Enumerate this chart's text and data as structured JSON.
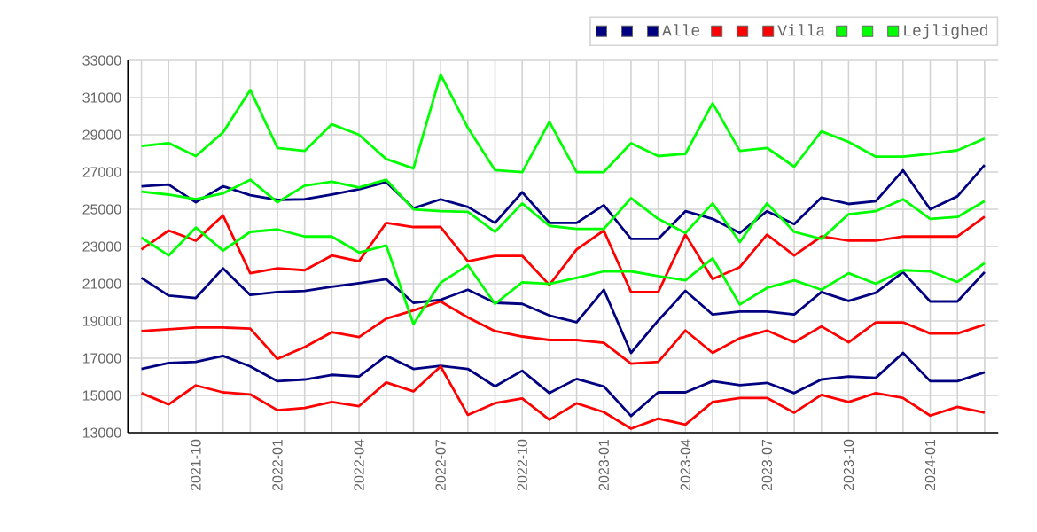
{
  "chart_data": {
    "type": "line",
    "x": [
      "2021-08",
      "2021-09",
      "2021-10",
      "2021-11",
      "2021-12",
      "2022-01",
      "2022-02",
      "2022-03",
      "2022-04",
      "2022-05",
      "2022-06",
      "2022-07",
      "2022-08",
      "2022-09",
      "2022-10",
      "2022-11",
      "2022-12",
      "2023-01",
      "2023-02",
      "2023-03",
      "2023-04",
      "2023-05",
      "2023-06",
      "2023-07",
      "2023-08",
      "2023-09",
      "2023-10",
      "2023-11",
      "2023-12",
      "2024-01",
      "2024-02",
      "2024-03"
    ],
    "series": [
      {
        "color": "#000080",
        "values": [
          16430,
          16750,
          16810,
          17130,
          16560,
          15770,
          15860,
          16110,
          16020,
          17130,
          16430,
          16590,
          16430,
          15490,
          16330,
          15130,
          15890,
          15490,
          13900,
          15170,
          15170,
          15770,
          15560,
          15680,
          15130,
          15860,
          16020,
          15950,
          17290,
          15770,
          15770,
          16250
        ]
      },
      {
        "color": "#000080",
        "values": [
          26240,
          26330,
          25380,
          26240,
          25760,
          25510,
          25540,
          25790,
          26080,
          26460,
          25060,
          25540,
          25130,
          24270,
          25920,
          24270,
          24270,
          25220,
          23410,
          23410,
          24900,
          24490,
          23730,
          24900,
          24210,
          25630,
          25290,
          25440,
          27100,
          25000,
          25700,
          27380
        ]
      },
      {
        "name": "Alle",
        "color": "#000080",
        "values": [
          21320,
          20370,
          20240,
          21830,
          20400,
          20560,
          20620,
          20840,
          21030,
          21250,
          19980,
          20140,
          20680,
          19980,
          19920,
          19300,
          18940,
          20680,
          17290,
          19030,
          20620,
          19350,
          19510,
          19510,
          19350,
          20560,
          20080,
          20520,
          21630,
          20050,
          20050,
          21630
        ]
      },
      {
        "color": "#ff0000",
        "values": [
          15130,
          14520,
          15540,
          15170,
          15060,
          14210,
          14330,
          14650,
          14430,
          15700,
          15220,
          16560,
          13960,
          14590,
          14840,
          13700,
          14580,
          14110,
          13220,
          13760,
          13440,
          14650,
          14870,
          14870,
          14080,
          15030,
          14650,
          15130,
          14870,
          13920,
          14390,
          14080
        ]
      },
      {
        "color": "#ff0000",
        "values": [
          22840,
          23860,
          23320,
          24670,
          21570,
          21830,
          21730,
          22520,
          22210,
          24270,
          24050,
          24050,
          22210,
          22500,
          22500,
          20940,
          22840,
          23860,
          20560,
          20560,
          23640,
          21250,
          21900,
          23640,
          22520,
          23540,
          23320,
          23320,
          23540,
          23540,
          23540,
          24600
        ]
      },
      {
        "name": "Villa",
        "color": "#ff0000",
        "values": [
          18460,
          18560,
          18650,
          18650,
          18590,
          16970,
          17600,
          18400,
          18140,
          19130,
          19570,
          20050,
          19190,
          18460,
          18170,
          17980,
          17980,
          17830,
          16710,
          16810,
          18490,
          17290,
          18080,
          18490,
          17860,
          18710,
          17860,
          18930,
          18930,
          18330,
          18330,
          18810
        ]
      },
      {
        "color": "#00ff00",
        "values": [
          23480,
          22520,
          24020,
          22780,
          23790,
          23920,
          23540,
          23540,
          22680,
          23060,
          18840,
          21060,
          22000,
          19920,
          21080,
          21000,
          21320,
          21670,
          21670,
          21410,
          21190,
          22370,
          19890,
          20780,
          21190,
          20680,
          21570,
          21000,
          21730,
          21670,
          21100,
          22110
        ]
      },
      {
        "color": "#00ff00",
        "values": [
          28400,
          28560,
          27860,
          29130,
          31410,
          28300,
          28140,
          29570,
          29000,
          27700,
          27200,
          32240,
          29380,
          27100,
          27000,
          29700,
          27000,
          27000,
          28550,
          27860,
          27980,
          30700,
          28140,
          28300,
          27290,
          29190,
          28620,
          27830,
          27830,
          27980,
          28170,
          28800
        ]
      },
      {
        "name": "Lejlighed",
        "color": "#00ff00",
        "values": [
          25950,
          25790,
          25540,
          25860,
          26590,
          25380,
          26270,
          26490,
          26180,
          26590,
          25000,
          24900,
          24870,
          23790,
          25320,
          24110,
          23950,
          23950,
          25600,
          24490,
          23730,
          25320,
          23240,
          25320,
          23790,
          23410,
          24740,
          24900,
          25540,
          24490,
          24590,
          25440
        ]
      }
    ],
    "xlim": [
      "2021-07-16",
      "2024-03-16"
    ],
    "xticks": [
      {
        "value": "2021-08",
        "label": null
      },
      {
        "value": "2021-09",
        "label": null
      },
      "2021-10",
      {
        "value": "2021-11",
        "label": null
      },
      {
        "value": "2021-12",
        "label": null
      },
      "2022-01",
      {
        "value": "2022-02",
        "label": null
      },
      {
        "value": "2022-03",
        "label": null
      },
      "2022-04",
      {
        "value": "2022-05",
        "label": null
      },
      {
        "value": "2022-06",
        "label": null
      },
      "2022-07",
      {
        "value": "2022-08",
        "label": null
      },
      {
        "value": "2022-09",
        "label": null
      },
      "2022-10",
      {
        "value": "2022-11",
        "label": null
      },
      {
        "value": "2022-12",
        "label": null
      },
      "2023-01",
      {
        "value": "2023-02",
        "label": null
      },
      {
        "value": "2023-03",
        "label": null
      },
      "2023-04",
      {
        "value": "2023-05",
        "label": null
      },
      {
        "value": "2023-06",
        "label": null
      },
      "2023-07",
      {
        "value": "2023-08",
        "label": null
      },
      {
        "value": "2023-09",
        "label": null
      },
      "2023-10",
      {
        "value": "2023-11",
        "label": null
      },
      {
        "value": "2023-12",
        "label": null
      },
      "2024-01",
      {
        "value": "2024-02",
        "label": null
      },
      {
        "value": "2024-03",
        "label": null
      }
    ],
    "ylim": [
      13000,
      33000
    ],
    "yticks": [
      13000,
      15000,
      17000,
      19000,
      21000,
      23000,
      25000,
      27000,
      29000,
      31000,
      33000
    ],
    "grid": true,
    "legend": "top right",
    "marker": "none",
    "line_style": "solid"
  }
}
